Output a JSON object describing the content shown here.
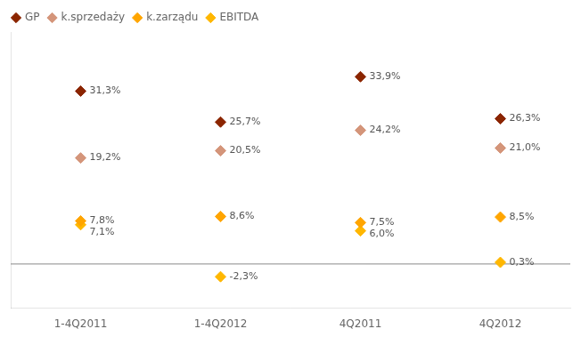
{
  "chart_data": {
    "type": "scatter",
    "categories": [
      "1-4Q2011",
      "1-4Q2012",
      "4Q2011",
      "4Q2012"
    ],
    "series": [
      {
        "name": "GP",
        "color": "#8B2500",
        "marker": "diamond",
        "values": [
          31.3,
          25.7,
          33.9,
          26.3
        ],
        "value_labels": [
          "31,3%",
          "25,7%",
          "33,9%",
          "26,3%"
        ]
      },
      {
        "name": "k.sprzedaży",
        "color": "#D4957A",
        "marker": "diamond",
        "values": [
          19.2,
          20.5,
          24.2,
          21.0
        ],
        "value_labels": [
          "19,2%",
          "20,5%",
          "24,2%",
          "21,0%"
        ]
      },
      {
        "name": "k.zarządu",
        "color": "#FFA500",
        "marker": "diamond",
        "values": [
          7.8,
          8.6,
          7.5,
          8.5
        ],
        "value_labels": [
          "7,8%",
          "8,6%",
          "7,5%",
          "8,5%"
        ]
      },
      {
        "name": "EBITDA",
        "color": "#FFB700",
        "marker": "diamond",
        "values": [
          7.1,
          -2.3,
          6.0,
          0.3
        ],
        "value_labels": [
          "7,1%",
          "-2,3%",
          "6,0%",
          "0,3%"
        ]
      }
    ],
    "ylim": [
      -8,
      42
    ],
    "reference_line": 0,
    "grid": false,
    "legend": "upper left",
    "data_labels": true,
    "tick_labels": "x"
  }
}
